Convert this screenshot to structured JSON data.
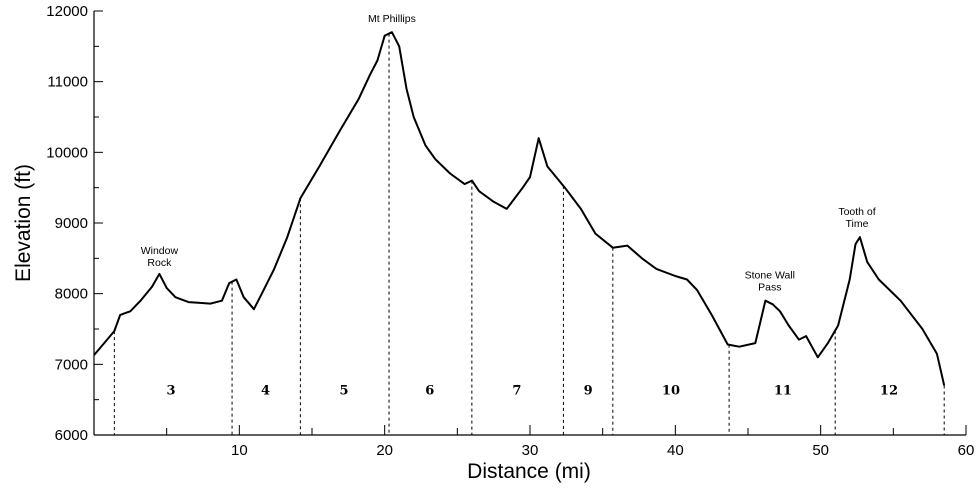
{
  "chart_data": {
    "type": "line",
    "title": "",
    "xlabel": "Distance (mi)",
    "ylabel": "Elevation (ft)",
    "xlim": [
      0,
      60
    ],
    "ylim": [
      6000,
      12000
    ],
    "xticks": [
      10,
      20,
      30,
      40,
      50,
      60
    ],
    "yticks": [
      6000,
      7000,
      8000,
      9000,
      10000,
      11000,
      12000
    ],
    "grid": false,
    "series": [
      {
        "x": [
          0,
          0.7,
          1.4,
          1.8,
          2.5,
          3.2,
          4.0,
          4.5,
          5.0,
          5.6,
          6.5,
          7.3,
          8.0,
          8.8,
          9.3,
          9.8,
          10.3,
          11.0,
          11.5,
          12.4,
          13.3,
          14.2,
          15.5,
          16.9,
          18.2,
          19.0,
          19.5,
          20.0,
          20.5,
          21.0,
          21.5,
          22.0,
          22.8,
          23.5,
          24.5,
          25.5,
          26.0,
          26.5,
          27.5,
          28.4,
          29.5,
          30.0,
          30.6,
          31.2,
          31.8,
          32.4,
          33.5,
          34.5,
          35.7,
          36.7,
          37.7,
          38.7,
          40.0,
          40.8,
          41.5,
          42.5,
          43.6,
          44.4,
          45.5,
          46.2,
          46.7,
          47.2,
          47.8,
          48.5,
          49.0,
          49.8,
          50.5,
          51.2,
          52.0,
          52.4,
          52.7,
          53.2,
          54.0,
          55.5,
          57.0,
          58.0,
          58.5
        ],
        "y": [
          7130,
          7300,
          7470,
          7700,
          7750,
          7900,
          8100,
          8280,
          8080,
          7950,
          7880,
          7870,
          7860,
          7900,
          8150,
          8200,
          7950,
          7780,
          7980,
          8350,
          8800,
          9350,
          9800,
          10300,
          10750,
          11100,
          11300,
          11650,
          11700,
          11500,
          10900,
          10500,
          10100,
          9900,
          9700,
          9550,
          9600,
          9450,
          9300,
          9200,
          9500,
          9650,
          10200,
          9800,
          9650,
          9500,
          9200,
          8850,
          8650,
          8680,
          8500,
          8350,
          8250,
          8200,
          8050,
          7700,
          7280,
          7250,
          7300,
          7900,
          7850,
          7750,
          7550,
          7350,
          7400,
          7100,
          7300,
          7550,
          8200,
          8700,
          8800,
          8450,
          8200,
          7900,
          7500,
          7150,
          6700
        ]
      }
    ],
    "segment_boundaries_mi": [
      1.4,
      9.5,
      14.2,
      20.3,
      26.0,
      32.3,
      35.7,
      43.7,
      51.0,
      58.5
    ],
    "segments": [
      {
        "label": "3",
        "x": 5.3
      },
      {
        "label": "4",
        "x": 11.8
      },
      {
        "label": "5",
        "x": 17.2
      },
      {
        "label": "6",
        "x": 23.1
      },
      {
        "label": "7",
        "x": 29.1
      },
      {
        "label": "9",
        "x": 34.0
      },
      {
        "label": "10",
        "x": 39.7
      },
      {
        "label": "11",
        "x": 47.4
      },
      {
        "label": "12",
        "x": 54.7
      }
    ],
    "annotations": [
      {
        "lines": [
          "Window",
          "Rock"
        ],
        "x": 4.5,
        "y": 8250
      },
      {
        "lines": [
          "Mt Phillips"
        ],
        "x": 20.5,
        "y": 11700
      },
      {
        "lines": [
          "Stone Wall",
          "Pass"
        ],
        "x": 46.5,
        "y": 7900
      },
      {
        "lines": [
          "Tooth of",
          "Time"
        ],
        "x": 52.5,
        "y": 8800
      }
    ]
  }
}
